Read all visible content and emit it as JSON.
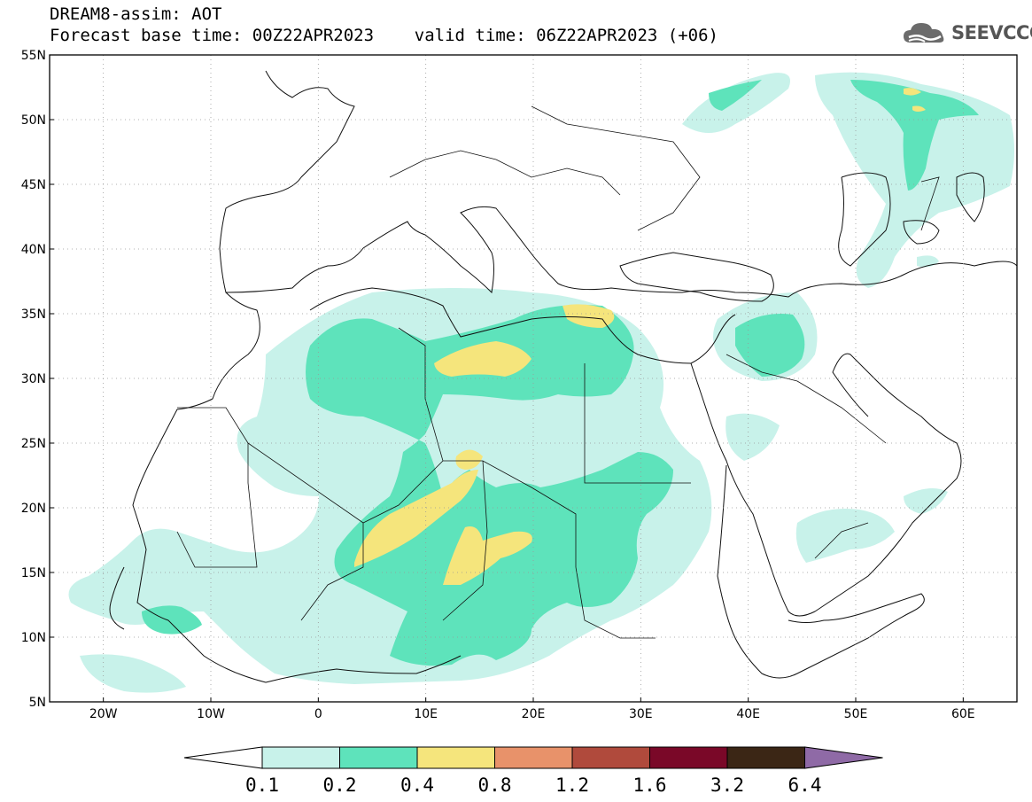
{
  "header": {
    "line1": "DREAM8-assim: AOT",
    "line2": "Forecast base time: 00Z22APR2023    valid time: 06Z22APR2023 (+06)"
  },
  "logo": {
    "text": "SEEVCCC",
    "icon": "cloud-icon"
  },
  "map": {
    "lat_labels": [
      "55N",
      "50N",
      "45N",
      "40N",
      "35N",
      "30N",
      "25N",
      "20N",
      "15N",
      "10N",
      "5N"
    ],
    "lon_labels": [
      "20W",
      "10W",
      "0",
      "10E",
      "20E",
      "30E",
      "40E",
      "50E",
      "60E"
    ],
    "lon_range": [
      -25,
      65
    ],
    "lat_range": [
      5,
      55
    ],
    "grid": "dotted"
  },
  "colorbar": {
    "levels": [
      "0.1",
      "0.2",
      "0.4",
      "0.8",
      "1.2",
      "1.6",
      "3.2",
      "6.4"
    ],
    "colors": [
      "#ffffff",
      "#c8f2ea",
      "#5ee3bb",
      "#f5e57c",
      "#e8926a",
      "#b04a3c",
      "#7a0828",
      "#3b2615",
      "#8f6aa6"
    ]
  }
}
